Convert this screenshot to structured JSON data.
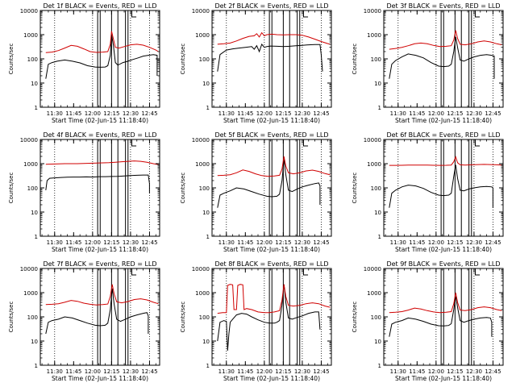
{
  "common": {
    "ylabel": "Counts/sec",
    "xlabel": "Start Time (02-Jun-15 11:18:40)",
    "xticks": [
      {
        "t": 30,
        "label": "11:30"
      },
      {
        "t": 45,
        "label": "11:45"
      },
      {
        "t": 60,
        "label": "12:00"
      },
      {
        "t": 75,
        "label": "12:15"
      },
      {
        "t": 90,
        "label": "12:30"
      },
      {
        "t": 105,
        "label": "12:45"
      }
    ],
    "yticks": [
      {
        "v": 1,
        "label": "1"
      },
      {
        "v": 10,
        "label": "10"
      },
      {
        "v": 100,
        "label": "100"
      },
      {
        "v": 1000,
        "label": "1000"
      },
      {
        "v": 10000,
        "label": "10000"
      }
    ],
    "series_colors": {
      "events": "#000000",
      "lld": "#d00000"
    },
    "vlines_solid": [
      64,
      66,
      75,
      80,
      86,
      88
    ],
    "vlines_dotted": [
      30,
      60,
      90,
      105
    ],
    "bracket_marks": [
      91,
      92
    ]
  },
  "chart_data": [
    {
      "type": "line",
      "title": "Det 1f BLACK = Events, RED = LLD",
      "xlim": [
        18.67,
        113
      ],
      "ylim": [
        1,
        10000
      ],
      "yscale": "log",
      "series": [
        {
          "name": "Events",
          "x": [
            23,
            25,
            28,
            32,
            38,
            44,
            50,
            56,
            62,
            66,
            70,
            72,
            74,
            75,
            76.5,
            78,
            80,
            84,
            88,
            92,
            96,
            100,
            104,
            108,
            111,
            111
          ],
          "values": [
            15,
            60,
            70,
            80,
            90,
            80,
            68,
            52,
            46,
            45,
            46,
            52,
            140,
            1000,
            350,
            70,
            55,
            70,
            80,
            95,
            110,
            130,
            140,
            150,
            140,
            20
          ]
        },
        {
          "name": "LLD",
          "x": [
            23,
            28,
            33,
            38,
            43,
            48,
            53,
            58,
            63,
            68,
            72,
            74,
            75,
            76.5,
            78,
            81,
            85,
            90,
            95,
            100,
            105,
            110,
            112
          ],
          "values": [
            180,
            190,
            220,
            280,
            360,
            330,
            260,
            200,
            185,
            190,
            200,
            400,
            1400,
            650,
            300,
            280,
            320,
            380,
            400,
            370,
            300,
            230,
            200
          ]
        }
      ]
    },
    {
      "type": "line",
      "title": "Det 2f BLACK = Events, RED = LLD",
      "xlim": [
        18.67,
        113
      ],
      "ylim": [
        1,
        10000
      ],
      "yscale": "log",
      "series": [
        {
          "name": "Events",
          "x": [
            23,
            25,
            30,
            35,
            40,
            45,
            50,
            52,
            54,
            56,
            58,
            60,
            62,
            65,
            70,
            75,
            80,
            85,
            90,
            95,
            100,
            104,
            105,
            106
          ],
          "values": [
            30,
            150,
            230,
            260,
            280,
            300,
            320,
            250,
            350,
            200,
            400,
            300,
            320,
            340,
            330,
            320,
            330,
            350,
            360,
            380,
            390,
            390,
            150,
            30
          ]
        },
        {
          "name": "LLD",
          "x": [
            23,
            28,
            33,
            38,
            43,
            48,
            52,
            54,
            56,
            58,
            60,
            62,
            66,
            70,
            75,
            80,
            85,
            90,
            95,
            100,
            105,
            110,
            112
          ],
          "values": [
            400,
            420,
            450,
            550,
            700,
            850,
            900,
            1100,
            800,
            1200,
            900,
            1000,
            1050,
            1000,
            980,
            1000,
            1000,
            950,
            800,
            650,
            520,
            430,
            400
          ]
        }
      ]
    },
    {
      "type": "line",
      "title": "Det 3f BLACK = Events, RED = LLD",
      "xlim": [
        18.67,
        113
      ],
      "ylim": [
        1,
        10000
      ],
      "yscale": "log",
      "series": [
        {
          "name": "Events",
          "x": [
            23,
            25,
            28,
            33,
            38,
            44,
            50,
            56,
            62,
            66,
            70,
            72,
            74,
            75.5,
            77,
            79,
            82,
            86,
            90,
            95,
            100,
            104,
            106,
            106
          ],
          "values": [
            15,
            60,
            85,
            120,
            160,
            140,
            110,
            70,
            50,
            48,
            50,
            60,
            200,
            800,
            300,
            90,
            80,
            100,
            120,
            140,
            150,
            140,
            130,
            15
          ]
        },
        {
          "name": "LLD",
          "x": [
            23,
            28,
            33,
            38,
            43,
            48,
            53,
            58,
            63,
            68,
            72,
            74,
            75.5,
            77,
            79,
            83,
            88,
            93,
            98,
            103,
            108,
            112
          ],
          "values": [
            250,
            270,
            300,
            350,
            420,
            450,
            420,
            360,
            320,
            330,
            350,
            600,
            1500,
            700,
            400,
            380,
            420,
            500,
            550,
            500,
            420,
            380
          ]
        }
      ]
    },
    {
      "type": "line",
      "title": "Det 4f BLACK = Events, RED = LLD",
      "xlim": [
        18.67,
        113
      ],
      "ylim": [
        1,
        10000
      ],
      "yscale": "log",
      "series": [
        {
          "name": "Events",
          "x": [
            23,
            24,
            26,
            30,
            35,
            40,
            45,
            50,
            55,
            60,
            65,
            70,
            75,
            80,
            85,
            90,
            95,
            100,
            104,
            105,
            105
          ],
          "values": [
            80,
            200,
            250,
            260,
            270,
            275,
            280,
            280,
            285,
            280,
            290,
            290,
            295,
            300,
            310,
            320,
            330,
            340,
            340,
            150,
            60
          ]
        },
        {
          "name": "LLD",
          "x": [
            23,
            28,
            33,
            38,
            43,
            48,
            53,
            58,
            63,
            68,
            73,
            78,
            83,
            88,
            93,
            98,
            103,
            108,
            112
          ],
          "values": [
            950,
            960,
            980,
            1000,
            1000,
            1000,
            1020,
            1040,
            1060,
            1080,
            1100,
            1150,
            1200,
            1250,
            1300,
            1250,
            1150,
            1000,
            920
          ]
        }
      ]
    },
    {
      "type": "line",
      "title": "Det 5f BLACK = Events, RED = LLD",
      "xlim": [
        18.67,
        113
      ],
      "ylim": [
        1,
        10000
      ],
      "yscale": "log",
      "series": [
        {
          "name": "Events",
          "x": [
            23,
            25,
            28,
            33,
            38,
            44,
            50,
            56,
            62,
            66,
            70,
            72,
            74,
            75.5,
            77,
            79,
            82,
            86,
            90,
            95,
            100,
            103,
            104,
            104
          ],
          "values": [
            15,
            50,
            60,
            75,
            100,
            90,
            70,
            55,
            45,
            43,
            45,
            55,
            200,
            1500,
            350,
            80,
            70,
            90,
            110,
            130,
            150,
            160,
            120,
            20
          ]
        },
        {
          "name": "LLD",
          "x": [
            23,
            28,
            33,
            38,
            43,
            48,
            53,
            58,
            63,
            68,
            72,
            74,
            75.5,
            77,
            79,
            83,
            88,
            93,
            98,
            103,
            108,
            112
          ],
          "values": [
            320,
            330,
            350,
            420,
            550,
            480,
            380,
            320,
            300,
            310,
            330,
            600,
            2000,
            800,
            420,
            380,
            420,
            500,
            540,
            480,
            390,
            350
          ]
        }
      ]
    },
    {
      "type": "line",
      "title": "Det 6f BLACK = Events, RED = LLD",
      "xlim": [
        18.67,
        113
      ],
      "ylim": [
        1,
        10000
      ],
      "yscale": "log",
      "series": [
        {
          "name": "Events",
          "x": [
            23,
            25,
            28,
            33,
            38,
            44,
            50,
            56,
            62,
            66,
            70,
            72,
            74,
            75.5,
            77,
            79,
            82,
            86,
            90,
            95,
            100,
            104,
            105,
            105
          ],
          "values": [
            15,
            60,
            80,
            110,
            130,
            120,
            95,
            65,
            50,
            48,
            50,
            60,
            300,
            900,
            250,
            80,
            75,
            90,
            100,
            110,
            115,
            110,
            100,
            15
          ]
        },
        {
          "name": "LLD",
          "x": [
            23,
            28,
            33,
            38,
            43,
            48,
            53,
            58,
            63,
            68,
            72,
            74,
            75.5,
            77,
            79,
            83,
            88,
            93,
            98,
            103,
            108,
            112
          ],
          "values": [
            850,
            850,
            860,
            870,
            880,
            880,
            870,
            860,
            850,
            860,
            880,
            1200,
            1900,
            1100,
            900,
            880,
            900,
            920,
            930,
            920,
            900,
            880
          ]
        }
      ]
    },
    {
      "type": "line",
      "title": "Det 7f BLACK = Events, RED = LLD",
      "xlim": [
        18.67,
        113
      ],
      "ylim": [
        1,
        10000
      ],
      "yscale": "log",
      "series": [
        {
          "name": "Events",
          "x": [
            23,
            25,
            28,
            33,
            38,
            44,
            50,
            56,
            62,
            66,
            70,
            72,
            74,
            75.5,
            77,
            79,
            82,
            86,
            90,
            95,
            100,
            103,
            104,
            104
          ],
          "values": [
            20,
            60,
            70,
            80,
            100,
            90,
            70,
            55,
            45,
            43,
            45,
            55,
            200,
            1500,
            350,
            80,
            65,
            80,
            100,
            120,
            140,
            150,
            110,
            20
          ]
        },
        {
          "name": "LLD",
          "x": [
            23,
            28,
            33,
            38,
            43,
            48,
            53,
            58,
            63,
            68,
            72,
            74,
            75.5,
            77,
            79,
            83,
            88,
            93,
            98,
            103,
            108,
            112
          ],
          "values": [
            320,
            330,
            350,
            400,
            480,
            440,
            370,
            330,
            310,
            320,
            340,
            700,
            2200,
            900,
            420,
            380,
            430,
            520,
            560,
            500,
            400,
            350
          ]
        }
      ]
    },
    {
      "type": "line",
      "title": "Det 8f BLACK = Events, RED = LLD",
      "xlim": [
        18.67,
        113
      ],
      "ylim": [
        1,
        10000
      ],
      "yscale": "log",
      "series": [
        {
          "name": "Events",
          "x": [
            23,
            25,
            28,
            30,
            31,
            32,
            33,
            35,
            38,
            42,
            46,
            50,
            55,
            60,
            64,
            68,
            70,
            72,
            74,
            75.5,
            77,
            79,
            82,
            86,
            90,
            95,
            100,
            103,
            104
          ],
          "values": [
            10,
            60,
            70,
            65,
            4,
            20,
            60,
            80,
            120,
            140,
            130,
            100,
            75,
            60,
            55,
            55,
            60,
            70,
            300,
            2200,
            400,
            90,
            80,
            95,
            110,
            140,
            160,
            160,
            30
          ]
        },
        {
          "name": "LLD",
          "x": [
            23,
            27,
            30,
            31,
            33,
            35,
            36,
            38,
            39,
            41,
            43,
            44,
            46,
            50,
            55,
            60,
            64,
            68,
            72,
            74,
            75.5,
            77,
            79,
            83,
            88,
            93,
            98,
            103,
            108,
            112
          ],
          "values": [
            140,
            150,
            150,
            2000,
            2200,
            2100,
            200,
            200,
            2000,
            2200,
            2100,
            200,
            220,
            200,
            160,
            150,
            150,
            160,
            180,
            500,
            2200,
            700,
            300,
            280,
            300,
            350,
            380,
            350,
            280,
            250
          ]
        }
      ]
    },
    {
      "type": "line",
      "title": "Det 9f BLACK = Events, RED = LLD",
      "xlim": [
        18.67,
        113
      ],
      "ylim": [
        1,
        10000
      ],
      "yscale": "log",
      "series": [
        {
          "name": "Events",
          "x": [
            23,
            25,
            28,
            33,
            38,
            44,
            50,
            56,
            62,
            66,
            70,
            72,
            74,
            75.5,
            77,
            79,
            82,
            86,
            90,
            95,
            100,
            103,
            104,
            104
          ],
          "values": [
            15,
            50,
            60,
            70,
            90,
            80,
            65,
            50,
            43,
            42,
            44,
            52,
            200,
            700,
            250,
            70,
            60,
            70,
            80,
            90,
            95,
            90,
            60,
            15
          ]
        },
        {
          "name": "LLD",
          "x": [
            23,
            28,
            33,
            38,
            43,
            48,
            53,
            58,
            63,
            68,
            72,
            74,
            75.5,
            77,
            79,
            83,
            88,
            93,
            98,
            103,
            108,
            112
          ],
          "values": [
            150,
            155,
            165,
            190,
            230,
            210,
            180,
            160,
            150,
            155,
            165,
            350,
            1000,
            400,
            190,
            180,
            200,
            240,
            260,
            240,
            200,
            180
          ]
        }
      ]
    }
  ]
}
